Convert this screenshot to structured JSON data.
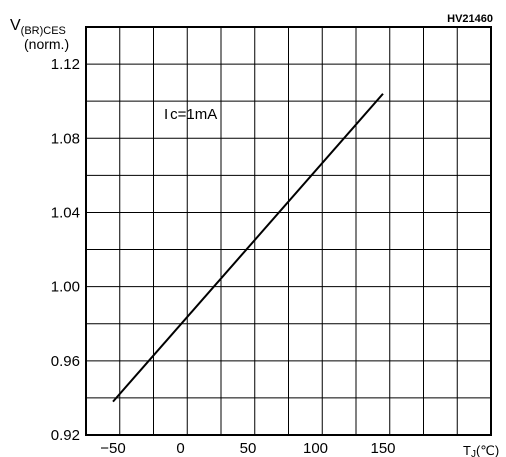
{
  "chart_data": {
    "type": "line",
    "code": "HV21460",
    "ylabel_main": "V",
    "ylabel_sub": "(BR)CES",
    "ylabel_norm": "(norm.)",
    "xlabel_main": "T",
    "xlabel_sub": "J",
    "xlabel_unit": "(℃)",
    "annotation_main": "I",
    "annotation_rest": "c=1mA",
    "xlim": [
      -70,
      230
    ],
    "ylim": [
      0.92,
      1.14
    ],
    "x_ticks": [
      -50,
      0,
      50,
      100,
      150
    ],
    "x_tick_labels": [
      "−50",
      "0",
      "50",
      "100",
      "150"
    ],
    "y_ticks": [
      0.92,
      0.96,
      1.0,
      1.04,
      1.08,
      1.12
    ],
    "y_tick_labels": [
      "0.92",
      "0.96",
      "1.00",
      "1.04",
      "1.08",
      "1.12"
    ],
    "series": [
      {
        "x": [
          -50,
          150
        ],
        "y": [
          0.938,
          1.104
        ]
      }
    ],
    "grid": true
  }
}
